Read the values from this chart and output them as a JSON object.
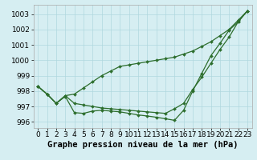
{
  "title": "Graphe pression niveau de la mer (hPa)",
  "background_color": "#d6eef2",
  "grid_color": "#b0d8de",
  "line_color": "#2d6e2d",
  "xlim": [
    -0.5,
    23.5
  ],
  "ylim": [
    995.6,
    1003.6
  ],
  "yticks": [
    996,
    997,
    998,
    999,
    1000,
    1001,
    1002,
    1003
  ],
  "xticks": [
    0,
    1,
    2,
    3,
    4,
    5,
    6,
    7,
    8,
    9,
    10,
    11,
    12,
    13,
    14,
    15,
    16,
    17,
    18,
    19,
    20,
    21,
    22,
    23
  ],
  "upper_line": [
    998.3,
    997.8,
    997.2,
    997.7,
    997.8,
    998.2,
    998.6,
    999.0,
    999.3,
    999.6,
    999.7,
    999.8,
    999.9,
    1000.0,
    1000.1,
    1000.2,
    1000.4,
    1000.6,
    1000.9,
    1001.2,
    1001.6,
    1002.0,
    1002.6,
    1003.2
  ],
  "middle_line": [
    998.3,
    997.8,
    997.2,
    997.7,
    997.2,
    997.1,
    997.0,
    996.9,
    996.85,
    996.8,
    996.75,
    996.7,
    996.65,
    996.6,
    996.55,
    996.85,
    997.2,
    998.1,
    998.9,
    999.8,
    1000.7,
    1001.5,
    1002.5,
    1003.2
  ],
  "lower_line": [
    998.3,
    997.8,
    997.2,
    997.65,
    996.6,
    996.55,
    996.7,
    996.75,
    996.7,
    996.65,
    996.55,
    996.45,
    996.38,
    996.3,
    996.2,
    996.1,
    996.75,
    998.0,
    999.15,
    1000.3,
    1001.1,
    1001.95,
    1002.5,
    1003.2
  ],
  "fontsize_ticks": 6.5,
  "fontsize_label": 7.5,
  "markersize": 2.0,
  "linewidth": 0.9
}
